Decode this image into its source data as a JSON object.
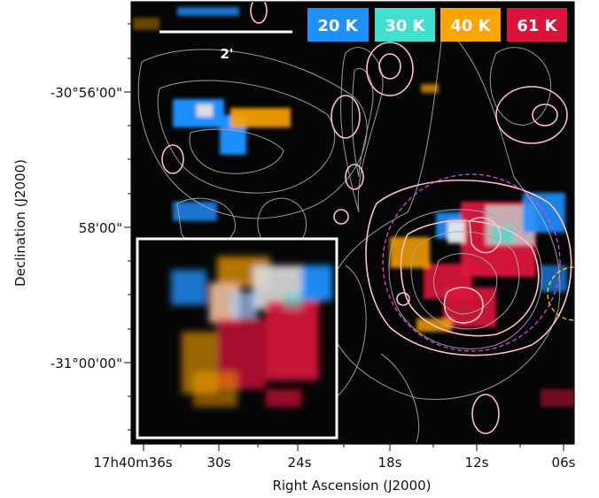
{
  "figure": {
    "legend": [
      {
        "label": "20 K",
        "color": "#1e90ff"
      },
      {
        "label": "30 K",
        "color": "#40e0d0"
      },
      {
        "label": "40 K",
        "color": "#ffa500"
      },
      {
        "label": "61 K",
        "color": "#dc143c"
      }
    ],
    "scale_bar_label": "2'",
    "x_axis": {
      "label": "Right Ascension (J2000)",
      "ticks": [
        "17h40m36s",
        "30s",
        "24s",
        "18s",
        "12s",
        "06s"
      ]
    },
    "y_axis": {
      "label": "Declination (J2000)",
      "ticks": [
        "-30°56'00\"",
        "58'00\"",
        "-31°00'00\""
      ]
    },
    "colors": {
      "background": "#050505",
      "contour_gray": "#a9a9a9",
      "contour_pink": "#ffc0cb",
      "circle_magenta": "#e040e0",
      "circle_yellow": "#ffd700",
      "inset_frame": "#ffffff"
    }
  }
}
